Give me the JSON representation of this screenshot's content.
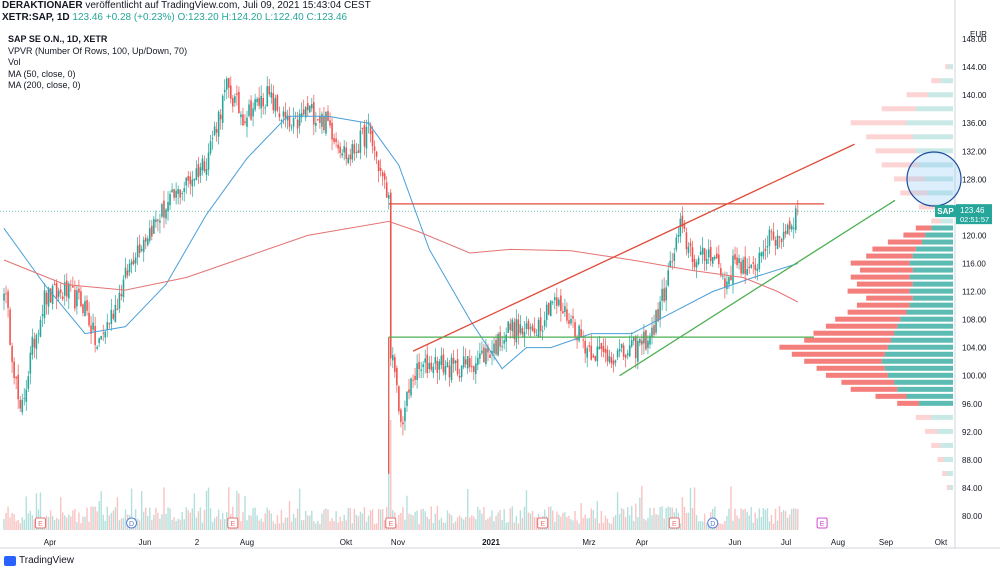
{
  "header": {
    "author": "DERAKTIONAER",
    "published_text": "veröffentlicht auf TradingView.com, Juli 09, 2021 15:43:04 CEST",
    "symbol": "XETR:SAP, 1D",
    "change": "123.46 +0.28 (+0.23%)",
    "open": "O:123.20",
    "high": "H:124.20",
    "low": "L:122.40",
    "close": "C:123.46"
  },
  "legend": {
    "title": "SAP SE O.N., 1D, XETR",
    "items": [
      "VPVR (Number Of Rows, 100, Up/Down, 70)",
      "Vol",
      "MA (50, close, 0)",
      "MA (200, close, 0)"
    ]
  },
  "footer": {
    "brand": "TradingView"
  },
  "colors": {
    "up": "#26a69a",
    "down": "#ef5350",
    "ma50": "#4a9fd8",
    "ma200": "#e57373",
    "resistance": "#e04b3a",
    "support": "#4caf50",
    "price_badge": "#26a69a"
  },
  "chart_data": {
    "type": "candlestick",
    "currency": "EUR",
    "y_ticks": [
      80,
      84,
      88,
      92,
      96,
      100,
      104,
      108,
      112,
      116,
      120,
      124,
      128,
      132,
      136,
      140,
      144,
      148
    ],
    "y_range": [
      78,
      150
    ],
    "x_ticks": [
      "Apr",
      "Jun",
      "2",
      "Aug",
      "Okt",
      "Nov",
      "2021",
      "Mrz",
      "Apr",
      "Jun",
      "Jul",
      "Aug",
      "Sep",
      "Okt"
    ],
    "last_price": {
      "symbol": "SAP",
      "value": "123.46",
      "countdown": "02:51:57"
    },
    "close_anchors": [
      [
        0,
        113
      ],
      [
        8,
        94
      ],
      [
        14,
        104
      ],
      [
        20,
        111
      ],
      [
        30,
        112
      ],
      [
        40,
        110
      ],
      [
        46,
        104
      ],
      [
        55,
        110
      ],
      [
        65,
        118
      ],
      [
        80,
        124
      ],
      [
        92,
        128
      ],
      [
        100,
        131
      ],
      [
        110,
        141
      ],
      [
        118,
        137
      ],
      [
        130,
        140
      ],
      [
        142,
        135
      ],
      [
        150,
        138
      ],
      [
        160,
        136
      ],
      [
        170,
        131
      ],
      [
        180,
        135
      ],
      [
        186,
        129
      ],
      [
        190,
        125
      ],
      [
        191,
        104
      ],
      [
        196,
        93
      ],
      [
        202,
        100
      ],
      [
        212,
        102
      ],
      [
        222,
        101
      ],
      [
        232,
        102
      ],
      [
        242,
        104
      ],
      [
        250,
        107
      ],
      [
        258,
        106
      ],
      [
        266,
        108
      ],
      [
        270,
        111
      ],
      [
        280,
        108
      ],
      [
        288,
        104
      ],
      [
        296,
        103
      ],
      [
        306,
        103
      ],
      [
        312,
        104
      ],
      [
        320,
        106
      ],
      [
        326,
        112
      ],
      [
        334,
        121
      ],
      [
        342,
        116
      ],
      [
        350,
        118
      ],
      [
        356,
        113
      ],
      [
        362,
        117
      ],
      [
        368,
        114
      ],
      [
        376,
        119
      ],
      [
        384,
        120
      ],
      [
        392,
        123.46
      ]
    ],
    "ma50": [
      [
        0,
        121
      ],
      [
        20,
        113
      ],
      [
        40,
        106
      ],
      [
        60,
        107
      ],
      [
        80,
        113
      ],
      [
        100,
        123
      ],
      [
        120,
        131
      ],
      [
        140,
        137
      ],
      [
        160,
        137
      ],
      [
        180,
        136
      ],
      [
        195,
        130
      ],
      [
        210,
        118
      ],
      [
        230,
        108
      ],
      [
        246,
        101
      ],
      [
        258,
        104
      ],
      [
        270,
        104
      ],
      [
        290,
        106
      ],
      [
        310,
        106
      ],
      [
        330,
        109
      ],
      [
        350,
        112
      ],
      [
        370,
        114
      ],
      [
        392,
        116
      ]
    ],
    "ma200": [
      [
        0,
        116.5
      ],
      [
        30,
        113
      ],
      [
        60,
        112.2
      ],
      [
        90,
        114
      ],
      [
        110,
        116
      ],
      [
        130,
        118
      ],
      [
        150,
        120
      ],
      [
        170,
        121
      ],
      [
        190,
        122
      ],
      [
        205,
        120.5
      ],
      [
        230,
        117.5
      ],
      [
        250,
        118
      ],
      [
        280,
        117.8
      ],
      [
        310,
        116.5
      ],
      [
        340,
        115
      ],
      [
        365,
        114
      ],
      [
        382,
        112
      ],
      [
        392,
        110.5
      ]
    ],
    "trendlines": [
      {
        "color": "resistance",
        "from": [
          202,
          103.5
        ],
        "to": [
          420,
          133
        ]
      },
      {
        "color": "resistance",
        "from": [
          190,
          124.5
        ],
        "to": [
          405,
          124.5
        ]
      },
      {
        "color": "support",
        "from": [
          190,
          105.5
        ],
        "to": [
          400,
          105.5
        ]
      },
      {
        "color": "support",
        "from": [
          304,
          100
        ],
        "to": [
          440,
          125
        ]
      }
    ],
    "volume_profile": [
      {
        "price": 84,
        "up": 2,
        "down": 2
      },
      {
        "price": 86,
        "up": 4,
        "down": 3
      },
      {
        "price": 88,
        "up": 6,
        "down": 4
      },
      {
        "price": 90,
        "up": 8,
        "down": 6
      },
      {
        "price": 92,
        "up": 10,
        "down": 8
      },
      {
        "price": 94,
        "up": 14,
        "down": 10
      },
      {
        "price": 96,
        "up": 22,
        "down": 14
      },
      {
        "price": 97,
        "up": 30,
        "down": 20
      },
      {
        "price": 98,
        "up": 36,
        "down": 30
      },
      {
        "price": 99,
        "up": 38,
        "down": 34
      },
      {
        "price": 100,
        "up": 42,
        "down": 40
      },
      {
        "price": 101,
        "up": 44,
        "down": 44
      },
      {
        "price": 102,
        "up": 46,
        "down": 50
      },
      {
        "price": 103,
        "up": 44,
        "down": 60
      },
      {
        "price": 104,
        "up": 42,
        "down": 70
      },
      {
        "price": 105,
        "up": 40,
        "down": 56
      },
      {
        "price": 106,
        "up": 38,
        "down": 52
      },
      {
        "price": 107,
        "up": 36,
        "down": 46
      },
      {
        "price": 108,
        "up": 34,
        "down": 42
      },
      {
        "price": 109,
        "up": 30,
        "down": 38
      },
      {
        "price": 110,
        "up": 28,
        "down": 34
      },
      {
        "price": 111,
        "up": 26,
        "down": 30
      },
      {
        "price": 112,
        "up": 28,
        "down": 40
      },
      {
        "price": 113,
        "up": 26,
        "down": 36
      },
      {
        "price": 114,
        "up": 28,
        "down": 38
      },
      {
        "price": 115,
        "up": 26,
        "down": 34
      },
      {
        "price": 116,
        "up": 28,
        "down": 38
      },
      {
        "price": 117,
        "up": 26,
        "down": 30
      },
      {
        "price": 118,
        "up": 24,
        "down": 28
      },
      {
        "price": 119,
        "up": 20,
        "down": 22
      },
      {
        "price": 120,
        "up": 18,
        "down": 14
      },
      {
        "price": 121,
        "up": 14,
        "down": 10
      },
      {
        "price": 122,
        "up": 8,
        "down": 6
      },
      {
        "price": 124,
        "up": 10,
        "down": 12
      },
      {
        "price": 126,
        "up": 16,
        "down": 18
      },
      {
        "price": 128,
        "up": 18,
        "down": 20
      },
      {
        "price": 130,
        "up": 22,
        "down": 24
      },
      {
        "price": 132,
        "up": 24,
        "down": 26
      },
      {
        "price": 134,
        "up": 26,
        "down": 30
      },
      {
        "price": 136,
        "up": 30,
        "down": 36
      },
      {
        "price": 138,
        "up": 24,
        "down": 22
      },
      {
        "price": 140,
        "up": 16,
        "down": 14
      },
      {
        "price": 142,
        "up": 8,
        "down": 6
      },
      {
        "price": 144,
        "up": 3,
        "down": 2
      }
    ],
    "event_markers": [
      {
        "label": "E",
        "kind": "earnings",
        "index": 18
      },
      {
        "label": "D",
        "kind": "dividend",
        "index": 63
      },
      {
        "label": "E",
        "kind": "earnings",
        "index": 113
      },
      {
        "label": "E",
        "kind": "earnings",
        "index": 191
      },
      {
        "label": "E",
        "kind": "earnings",
        "index": 266
      },
      {
        "label": "E",
        "kind": "earnings",
        "index": 331
      },
      {
        "label": "D",
        "kind": "dividend",
        "index": 350
      },
      {
        "label": "E",
        "kind": "earnings",
        "index": 404
      }
    ]
  }
}
